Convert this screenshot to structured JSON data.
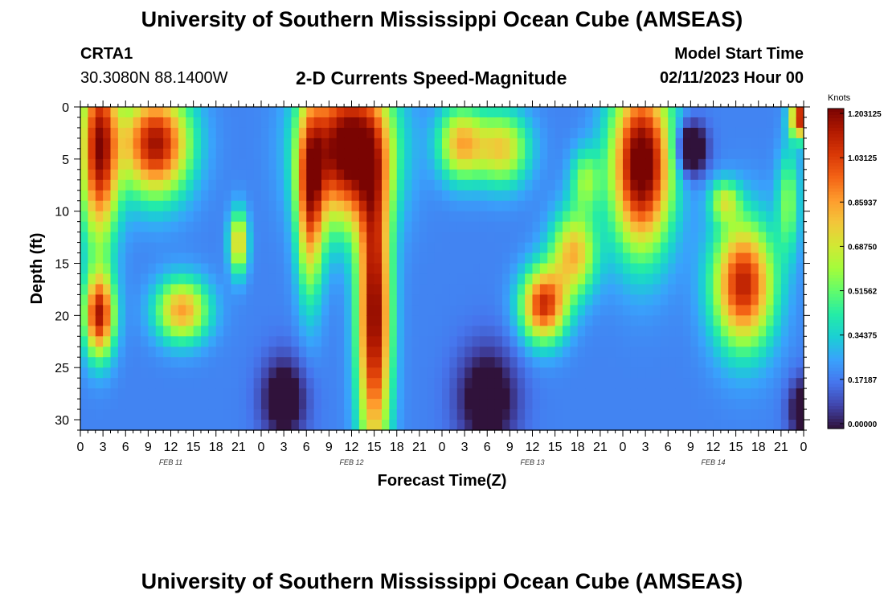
{
  "header": {
    "title": "University of Southern Mississippi Ocean Cube (AMSEAS)",
    "station": "CRTA1",
    "coords": "30.3080N  88.1400W",
    "subtitle": "2-D Currents Speed-Magnitude",
    "model_start_label": "Model Start Time",
    "model_start_value": "02/11/2023 Hour 00"
  },
  "footer": {
    "title": "University of Southern Mississippi Ocean Cube (AMSEAS)"
  },
  "chart_data": {
    "type": "heatmap",
    "title": "2-D Currents Speed-Magnitude",
    "xlabel": "Forecast Time(Z)",
    "ylabel": "Depth (ft)",
    "x_tick_labels": [
      "0",
      "3",
      "6",
      "9",
      "12",
      "15",
      "18",
      "21",
      "0",
      "3",
      "6",
      "9",
      "12",
      "15",
      "18",
      "21",
      "0",
      "3",
      "6",
      "9",
      "12",
      "15",
      "18",
      "21",
      "0",
      "3",
      "6",
      "9",
      "12",
      "15",
      "18",
      "21",
      "0"
    ],
    "x_range_hours": [
      0,
      96
    ],
    "date_labels": [
      {
        "label": "FEB 11",
        "hour": 12
      },
      {
        "label": "FEB 12",
        "hour": 36
      },
      {
        "label": "FEB 13",
        "hour": 60
      },
      {
        "label": "FEB 14",
        "hour": 84
      }
    ],
    "y_ticks": [
      0,
      5,
      10,
      15,
      20,
      25,
      30
    ],
    "y_tick_labels": [
      "0",
      "5",
      "10",
      "15",
      "20",
      "25",
      "30"
    ],
    "y_range_ft": [
      0,
      31
    ],
    "colorbar": {
      "unit": "Knots",
      "min": 0.0,
      "max": 1.203125,
      "tick_labels": [
        "1.203125",
        "1.03125",
        "0.85937",
        "0.68750",
        "0.51562",
        "0.34375",
        "0.17187",
        "0.00000"
      ],
      "colors": [
        "#30123b",
        "#4145ab",
        "#4675ed",
        "#39a2fc",
        "#1bcfd4",
        "#24eca6",
        "#61fc6c",
        "#a4fc3b",
        "#d1e834",
        "#f3c63a",
        "#fe9b2d",
        "#f36315",
        "#d93806",
        "#b11901",
        "#7a0402"
      ]
    },
    "blobs": [
      {
        "t": 10,
        "d": 3.5,
        "st": 4.5,
        "sd": 5.0,
        "a": 0.95
      },
      {
        "t": 2.5,
        "d": 4.0,
        "st": 2.5,
        "sd": 9.0,
        "a": 0.95
      },
      {
        "t": 2.5,
        "d": 20.0,
        "st": 2.0,
        "sd": 4.0,
        "a": 0.9
      },
      {
        "t": 13.5,
        "d": 19.5,
        "st": 3.5,
        "sd": 3.0,
        "a": 0.65
      },
      {
        "t": 21,
        "d": 13.0,
        "st": 1.2,
        "sd": 3.0,
        "a": 0.6
      },
      {
        "t": 35.5,
        "d": 4.0,
        "st": 5.5,
        "sd": 7.0,
        "a": 1.1
      },
      {
        "t": 39,
        "d": 20.0,
        "st": 2.2,
        "sd": 14.0,
        "a": 1.0
      },
      {
        "t": 30.5,
        "d": 9.0,
        "st": 1.8,
        "sd": 9.0,
        "a": 0.7
      },
      {
        "t": 50.5,
        "d": 3.5,
        "st": 3.0,
        "sd": 3.5,
        "a": 0.6
      },
      {
        "t": 56,
        "d": 4.0,
        "st": 3.5,
        "sd": 3.5,
        "a": 0.55
      },
      {
        "t": 61.5,
        "d": 19.0,
        "st": 3.0,
        "sd": 3.5,
        "a": 0.85
      },
      {
        "t": 65.5,
        "d": 14.0,
        "st": 3.0,
        "sd": 4.0,
        "a": 0.6
      },
      {
        "t": 67,
        "d": 7.0,
        "st": 2.0,
        "sd": 3.0,
        "a": 0.35
      },
      {
        "t": 74.5,
        "d": 5.5,
        "st": 4.0,
        "sd": 8.0,
        "a": 1.1
      },
      {
        "t": 88,
        "d": 17.0,
        "st": 4.0,
        "sd": 6.0,
        "a": 0.9
      },
      {
        "t": 85.5,
        "d": 9.0,
        "st": 2.0,
        "sd": 2.0,
        "a": 0.4
      },
      {
        "t": 95.5,
        "d": 1.0,
        "st": 1.3,
        "sd": 2.0,
        "a": 0.9
      },
      {
        "t": 94,
        "d": 9.0,
        "st": 1.5,
        "sd": 5.0,
        "a": 0.35
      }
    ],
    "lows": [
      {
        "t": 81,
        "d": 4.0,
        "st": 2.0,
        "sd": 2.5,
        "a": 0.45
      },
      {
        "t": 54,
        "d": 28.0,
        "st": 4.0,
        "sd": 5.0,
        "a": 0.3
      },
      {
        "t": 27,
        "d": 28.0,
        "st": 3.0,
        "sd": 4.0,
        "a": 0.3
      },
      {
        "t": 96,
        "d": 29.0,
        "st": 2.0,
        "sd": 3.0,
        "a": 0.3
      }
    ]
  }
}
